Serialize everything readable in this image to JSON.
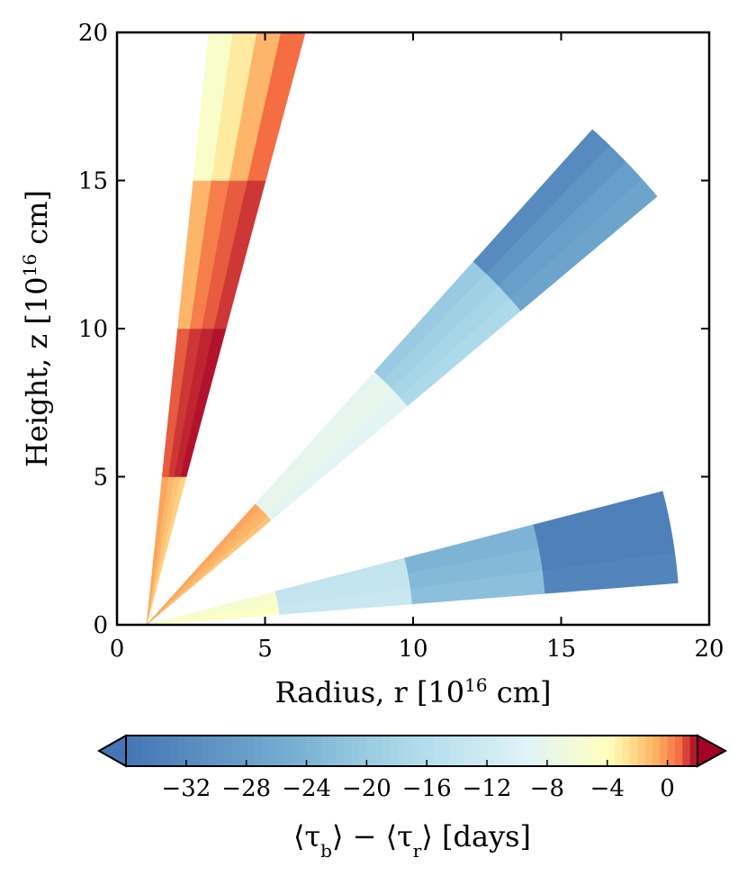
{
  "chart_data": {
    "type": "heatmap",
    "title": "",
    "xlabel": "Radius, r [10^16 cm]",
    "ylabel": "Height, z [10^16 cm]",
    "xlim": [
      0,
      20
    ],
    "ylim": [
      0,
      20
    ],
    "xticks": [
      0,
      5,
      10,
      15,
      20
    ],
    "yticks": [
      0,
      5,
      10,
      15,
      20
    ],
    "colorbar": {
      "label": "⟨τ_b⟩ − ⟨τ_r⟩ [days]",
      "range": [
        -36,
        2
      ],
      "ticks": [
        -32,
        -28,
        -24,
        -20,
        -16,
        -12,
        -8,
        -4,
        0
      ],
      "tick_labels": [
        "−32",
        "−28",
        "−24",
        "−20",
        "−16",
        "−12",
        "−8",
        "−4",
        "0"
      ],
      "extend": "both",
      "colormap": "RdYlBu reversed"
    },
    "series": [
      {
        "name": "wedge-vertical",
        "angle_range_deg": [
          75,
          84
        ],
        "origin": [
          1,
          0
        ],
        "cells": [
          {
            "z_range": [
              0,
              5
            ],
            "values": [
              -2,
              -1.5,
              -1,
              -0.5
            ]
          },
          {
            "z_range": [
              5,
              10
            ],
            "values": [
              1.8,
              1.6,
              1.4,
              1.0
            ]
          },
          {
            "z_range": [
              10,
              15
            ],
            "values": [
              1.4,
              1.0,
              0.4,
              -1.0
            ]
          },
          {
            "z_range": [
              15,
              20
            ],
            "values": [
              0.8,
              -1.0,
              -3.0,
              -5.0
            ]
          }
        ]
      },
      {
        "name": "wedge-diagonal",
        "angle_range_deg": [
          40,
          48
        ],
        "origin": [
          1,
          0
        ],
        "cells": [
          {
            "r_range": [
              1,
              6.5
            ],
            "values": [
              -1.5,
              -1.0,
              -0.8,
              -0.5
            ]
          },
          {
            "r_range": [
              6.5,
              12.5
            ],
            "values": [
              -9,
              -8.5,
              -8,
              -8.5
            ]
          },
          {
            "r_range": [
              12.5,
              17.5
            ],
            "values": [
              -17,
              -18,
              -19,
              -20
            ]
          },
          {
            "r_range": [
              17.5,
              23.5
            ],
            "values": [
              -27,
              -28,
              -30,
              -32
            ]
          }
        ]
      },
      {
        "name": "wedge-horizontal",
        "angle_range_deg": [
          4.5,
          14.5
        ],
        "origin": [
          1,
          0
        ],
        "cells": [
          {
            "r_range": [
              1,
              5.5
            ],
            "values": [
              -4,
              -5,
              -5.5
            ]
          },
          {
            "r_range": [
              5.5,
              10
            ],
            "values": [
              -13,
              -13.5,
              -14
            ]
          },
          {
            "r_range": [
              10,
              14.5
            ],
            "values": [
              -22,
              -23,
              -24
            ]
          },
          {
            "r_range": [
              14.5,
              19
            ],
            "values": [
              -33,
              -34,
              -34
            ]
          }
        ]
      }
    ]
  }
}
